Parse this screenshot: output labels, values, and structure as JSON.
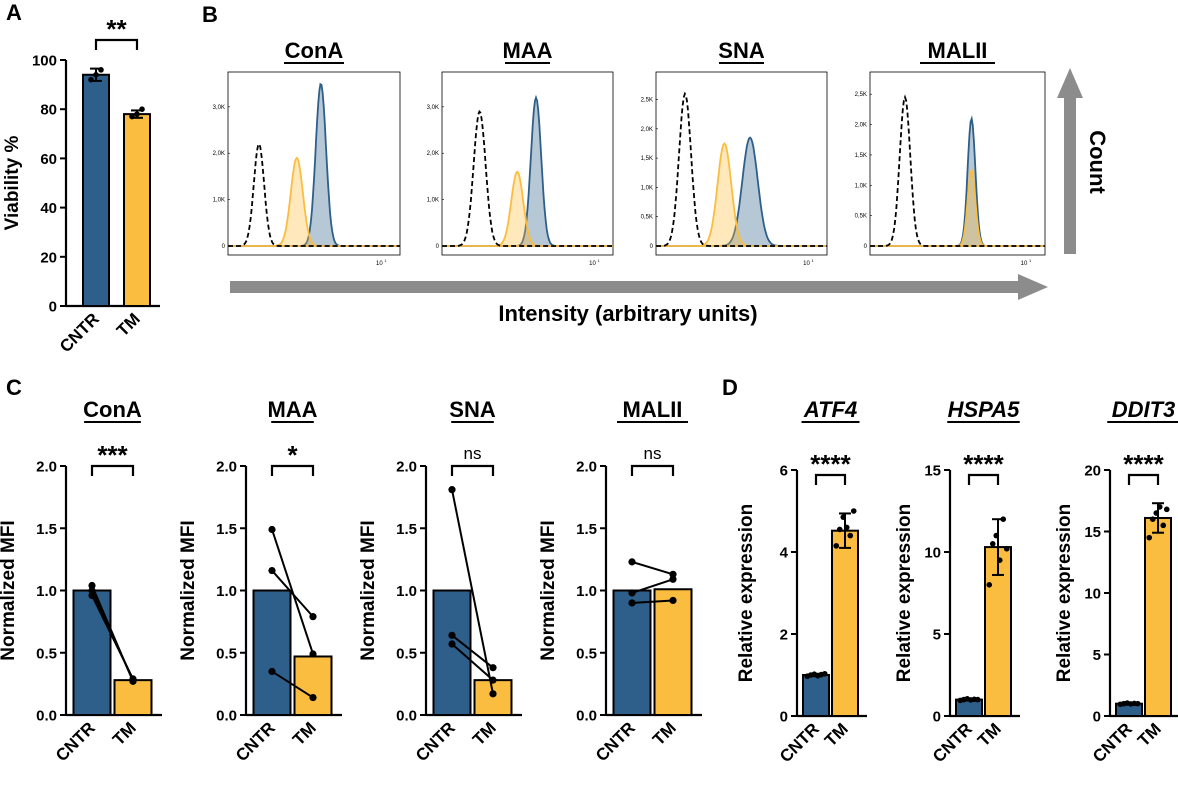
{
  "colors": {
    "cntr": "#2e5f8a",
    "tm": "#fbbd3f",
    "control": "#000000",
    "arrow": "#8c8c8c"
  },
  "panel_labels": {
    "A": "A",
    "B": "B",
    "C": "C",
    "D": "D"
  },
  "chart_data": [
    {
      "id": "A",
      "type": "bar",
      "categories": [
        "CNTR",
        "TM"
      ],
      "values": [
        94,
        78
      ],
      "errors": [
        2.5,
        1.5
      ],
      "points": [
        [
          92,
          94,
          96
        ],
        [
          77,
          78,
          80
        ]
      ],
      "ylabel": "Viability %",
      "ylim": [
        0,
        100
      ],
      "yticks": [
        0,
        20,
        40,
        60,
        80,
        100
      ],
      "significance": "**"
    },
    {
      "id": "B",
      "type": "area",
      "titles": [
        "ConA",
        "MAA",
        "SNA",
        "MALII"
      ],
      "xlabel": "Intensity (arbitrary units)",
      "ylabel": "Count",
      "tick_label": "10",
      "tick_sup": "1",
      "panels": [
        {
          "yticks": [
            "0",
            "1,0K",
            "2,0K",
            "3,0K"
          ],
          "ymax": 3.6,
          "control": {
            "peak": 0.18,
            "height": 2.2,
            "width": 0.03
          },
          "tm": {
            "peak": 0.4,
            "height": 1.9,
            "width": 0.035
          },
          "cntr": {
            "peak": 0.54,
            "height": 3.5,
            "width": 0.03
          }
        },
        {
          "yticks": [
            "0",
            "1,0K",
            "2,0K",
            "3,0K"
          ],
          "ymax": 3.6,
          "control": {
            "peak": 0.22,
            "height": 2.9,
            "width": 0.035
          },
          "tm": {
            "peak": 0.44,
            "height": 1.6,
            "width": 0.035
          },
          "cntr": {
            "peak": 0.55,
            "height": 3.2,
            "width": 0.03
          }
        },
        {
          "yticks": [
            "0",
            "0,5K",
            "1,0K",
            "1,5K",
            "2,0K",
            "2,5K"
          ],
          "ymax": 2.85,
          "control": {
            "peak": 0.17,
            "height": 2.6,
            "width": 0.035
          },
          "tm": {
            "peak": 0.4,
            "height": 1.75,
            "width": 0.04
          },
          "cntr": {
            "peak": 0.55,
            "height": 1.85,
            "width": 0.045
          }
        },
        {
          "yticks": [
            "0",
            "0,5K",
            "1,0K",
            "1,5K",
            "2,0K",
            "2,5K"
          ],
          "ymax": 2.75,
          "control": {
            "peak": 0.2,
            "height": 2.45,
            "width": 0.03
          },
          "tm": {
            "peak": 0.58,
            "height": 1.25,
            "width": 0.022
          },
          "cntr": {
            "peak": 0.58,
            "height": 2.1,
            "width": 0.022
          }
        }
      ]
    },
    {
      "id": "C",
      "type": "bar",
      "panels": [
        {
          "title": "ConA",
          "categories": [
            "CNTR",
            "TM"
          ],
          "values": [
            1.0,
            0.28
          ],
          "pairs": [
            [
              1.04,
              0.27
            ],
            [
              1.0,
              0.28
            ],
            [
              0.96,
              0.29
            ]
          ],
          "significance": "***"
        },
        {
          "title": "MAA",
          "categories": [
            "CNTR",
            "TM"
          ],
          "values": [
            1.0,
            0.47
          ],
          "pairs": [
            [
              1.49,
              0.49
            ],
            [
              1.16,
              0.79
            ],
            [
              0.35,
              0.14
            ]
          ],
          "significance": "*"
        },
        {
          "title": "SNA",
          "categories": [
            "CNTR",
            "TM"
          ],
          "values": [
            1.0,
            0.28
          ],
          "pairs": [
            [
              1.81,
              0.17
            ],
            [
              0.64,
              0.38
            ],
            [
              0.57,
              0.28
            ]
          ],
          "significance": "ns"
        },
        {
          "title": "MALII",
          "categories": [
            "CNTR",
            "TM"
          ],
          "values": [
            1.0,
            1.01
          ],
          "pairs": [
            [
              1.23,
              1.13
            ],
            [
              0.98,
              1.09
            ],
            [
              0.9,
              0.92
            ]
          ],
          "significance": "ns"
        }
      ],
      "ylabel": "Normalized MFI",
      "ylim": [
        0,
        2.0
      ],
      "ytick_labels": [
        "0.0",
        "0.5",
        "1.0",
        "1.5",
        "2.0"
      ]
    },
    {
      "id": "D",
      "type": "bar",
      "panels": [
        {
          "title": "ATF4",
          "categories": [
            "CNTR",
            "TM"
          ],
          "values": [
            1.0,
            4.52
          ],
          "errors": [
            0.03,
            0.42
          ],
          "points": [
            [
              0.97,
              1.0,
              1.02,
              0.98,
              1.01,
              1.03
            ],
            [
              4.15,
              4.55,
              4.85,
              4.6,
              4.4,
              5.0
            ]
          ],
          "ylim": [
            0,
            6
          ],
          "yticks": [
            0,
            2,
            4,
            6
          ],
          "significance": "****"
        },
        {
          "title": "HSPA5",
          "categories": [
            "CNTR",
            "TM"
          ],
          "values": [
            1.0,
            10.3
          ],
          "errors": [
            0.05,
            1.7
          ],
          "points": [
            [
              0.95,
              1.0,
              1.05,
              0.98,
              1.02,
              1.0
            ],
            [
              8.0,
              10.5,
              11.0,
              9.5,
              12.0,
              10.2
            ]
          ],
          "ylim": [
            0,
            15
          ],
          "yticks": [
            0,
            5,
            10,
            15
          ],
          "significance": "****"
        },
        {
          "title": "DDIT3",
          "categories": [
            "CNTR",
            "TM"
          ],
          "values": [
            1.0,
            16.1
          ],
          "errors": [
            0.05,
            1.2
          ],
          "points": [
            [
              0.95,
              1.0,
              1.05,
              0.98,
              1.02,
              1.0
            ],
            [
              14.5,
              16.0,
              16.5,
              17.0,
              15.5,
              16.8
            ]
          ],
          "ylim": [
            0,
            20
          ],
          "yticks": [
            0,
            5,
            10,
            15,
            20
          ],
          "significance": "****"
        }
      ],
      "ylabel": "Relative expression"
    }
  ]
}
